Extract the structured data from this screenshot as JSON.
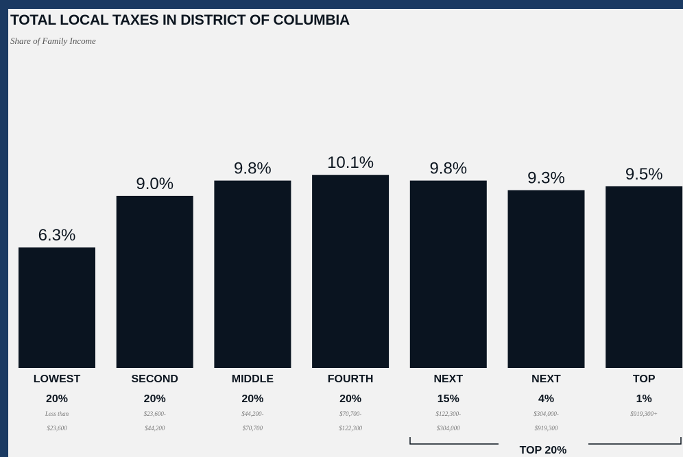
{
  "chart_data": {
    "type": "bar",
    "title": "TOTAL LOCAL TAXES IN DISTRICT OF COLUMBIA",
    "subtitle": "Share of Family Income",
    "categories": [
      {
        "name": "LOWEST",
        "pct": "20%",
        "range1": "Less than",
        "range2": "$23,600"
      },
      {
        "name": "SECOND",
        "pct": "20%",
        "range1": "$23,600-",
        "range2": "$44,200"
      },
      {
        "name": "MIDDLE",
        "pct": "20%",
        "range1": "$44,200-",
        "range2": "$70,700"
      },
      {
        "name": "FOURTH",
        "pct": "20%",
        "range1": "$70,700-",
        "range2": "$122,300"
      },
      {
        "name": "NEXT",
        "pct": "15%",
        "range1": "$122,300-",
        "range2": "$304,000"
      },
      {
        "name": "NEXT",
        "pct": "4%",
        "range1": "$304,000-",
        "range2": "$919,300"
      },
      {
        "name": "TOP",
        "pct": "1%",
        "range1": "$919,300+",
        "range2": ""
      }
    ],
    "values": [
      6.3,
      9.0,
      9.8,
      10.1,
      9.8,
      9.3,
      9.5
    ],
    "value_labels": [
      "6.3%",
      "9.0%",
      "9.8%",
      "10.1%",
      "9.8%",
      "9.3%",
      "9.5%"
    ],
    "group_label": "TOP 20%",
    "bar_color": "#0a1420"
  }
}
